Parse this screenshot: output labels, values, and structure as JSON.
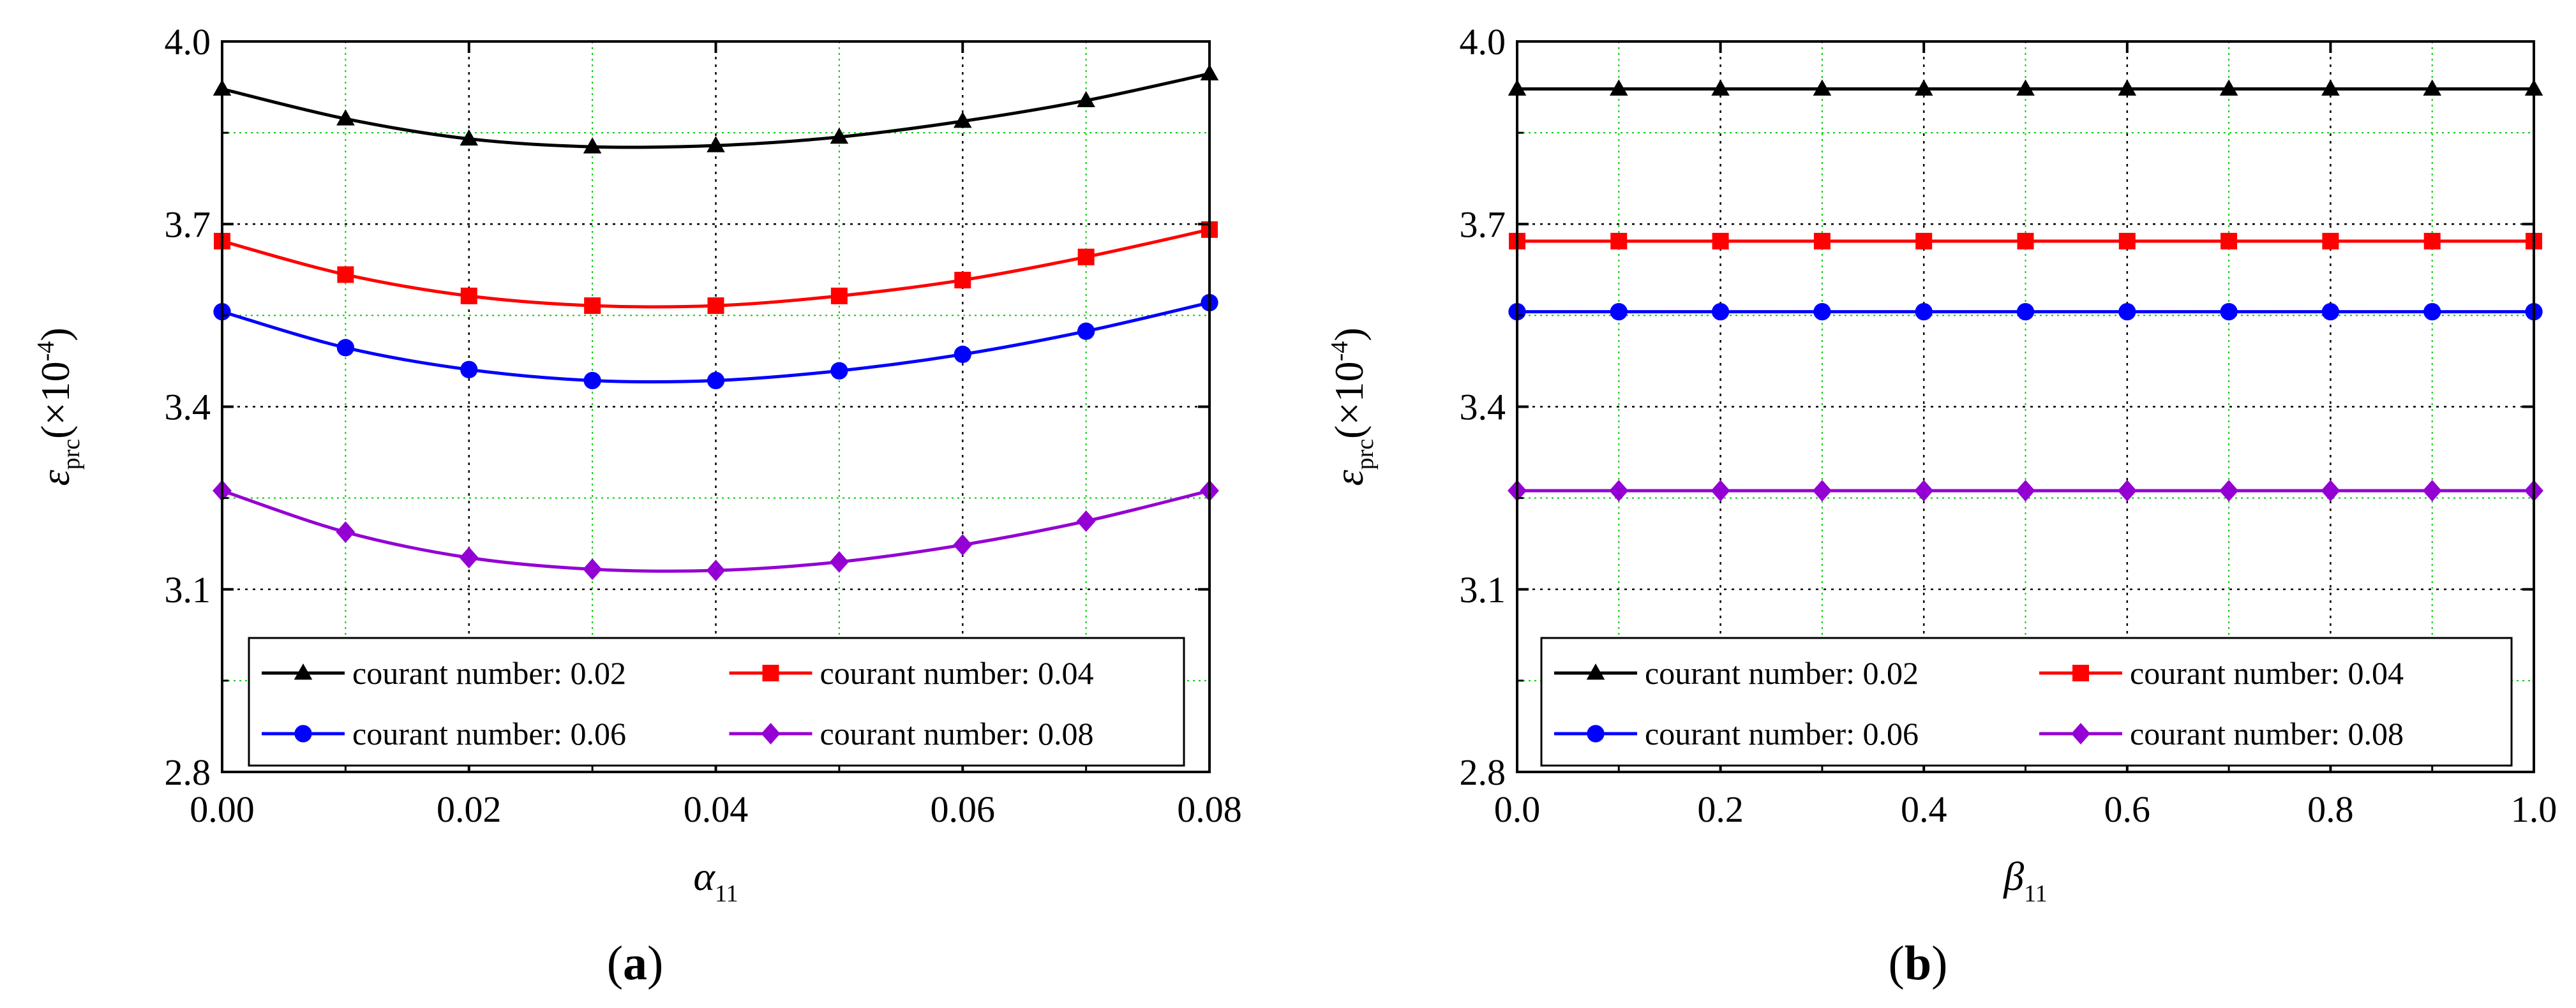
{
  "chart_data": [
    {
      "type": "line",
      "panel_label": "a",
      "xlabel": "α",
      "xlabel_sub": "11",
      "ylabel": "ε",
      "ylabel_sub": "prc",
      "ylabel_unit": "(×10",
      "ylabel_exp": "-4",
      "ylabel_close": ")",
      "xlim": [
        0,
        0.08
      ],
      "ylim": [
        2.8,
        4.0
      ],
      "x_ticks": [
        0,
        0.02,
        0.04,
        0.06,
        0.08
      ],
      "x_tick_labels": [
        "0.00",
        "0.02",
        "0.04",
        "0.06",
        "0.08"
      ],
      "y_ticks": [
        2.8,
        3.1,
        3.4,
        3.7,
        4.0
      ],
      "y_tick_labels": [
        "2.8",
        "3.1",
        "3.4",
        "3.7",
        "4.0"
      ],
      "x": [
        0,
        0.01,
        0.02,
        0.03,
        0.04,
        0.05,
        0.06,
        0.07,
        0.08
      ],
      "grid_major_x": [
        0.02,
        0.04,
        0.06
      ],
      "grid_major_y": [
        3.1,
        3.4,
        3.7
      ],
      "grid_minor_x": [
        0.01,
        0.03,
        0.05,
        0.07
      ],
      "grid_minor_y": [
        2.95,
        3.25,
        3.55,
        3.85
      ],
      "legend_position": "bottom",
      "series": [
        {
          "name": "courant number: 0.02",
          "color": "#000000",
          "marker": "triangle",
          "values": [
            3.922,
            3.873,
            3.84,
            3.827,
            3.829,
            3.843,
            3.869,
            3.903,
            3.947
          ]
        },
        {
          "name": "courant number: 0.04",
          "color": "#ff0000",
          "marker": "square",
          "values": [
            3.672,
            3.617,
            3.582,
            3.566,
            3.566,
            3.582,
            3.608,
            3.646,
            3.691
          ]
        },
        {
          "name": "courant number: 0.06",
          "color": "#0000ff",
          "marker": "circle",
          "values": [
            3.556,
            3.497,
            3.461,
            3.443,
            3.443,
            3.459,
            3.486,
            3.524,
            3.571
          ]
        },
        {
          "name": "courant number: 0.08",
          "color": "#9400d3",
          "marker": "diamond",
          "values": [
            3.262,
            3.194,
            3.152,
            3.133,
            3.131,
            3.145,
            3.173,
            3.212,
            3.262
          ]
        }
      ]
    },
    {
      "type": "line",
      "panel_label": "b",
      "xlabel": "β",
      "xlabel_sub": "11",
      "ylabel": "ε",
      "ylabel_sub": "prc",
      "ylabel_unit": "(×10",
      "ylabel_exp": "-4",
      "ylabel_close": ")",
      "xlim": [
        0,
        1.0
      ],
      "ylim": [
        2.8,
        4.0
      ],
      "x_ticks": [
        0,
        0.2,
        0.4,
        0.6,
        0.8,
        1.0
      ],
      "x_tick_labels": [
        "0.0",
        "0.2",
        "0.4",
        "0.6",
        "0.8",
        "1.0"
      ],
      "y_ticks": [
        2.8,
        3.1,
        3.4,
        3.7,
        4.0
      ],
      "y_tick_labels": [
        "2.8",
        "3.1",
        "3.4",
        "3.7",
        "4.0"
      ],
      "x": [
        0,
        0.1,
        0.2,
        0.3,
        0.4,
        0.5,
        0.6,
        0.7,
        0.8,
        0.9,
        1.0
      ],
      "grid_major_x": [
        0.2,
        0.4,
        0.6,
        0.8
      ],
      "grid_major_y": [
        3.1,
        3.4,
        3.7
      ],
      "grid_minor_x": [
        0.1,
        0.3,
        0.5,
        0.7,
        0.9
      ],
      "grid_minor_y": [
        2.95,
        3.25,
        3.55,
        3.85
      ],
      "legend_position": "bottom",
      "series": [
        {
          "name": "courant number: 0.02",
          "color": "#000000",
          "marker": "triangle",
          "values": [
            3.922,
            3.922,
            3.922,
            3.922,
            3.922,
            3.922,
            3.922,
            3.922,
            3.922,
            3.922,
            3.922
          ]
        },
        {
          "name": "courant number: 0.04",
          "color": "#ff0000",
          "marker": "square",
          "values": [
            3.672,
            3.672,
            3.672,
            3.672,
            3.672,
            3.672,
            3.672,
            3.672,
            3.672,
            3.672,
            3.672
          ]
        },
        {
          "name": "courant number: 0.06",
          "color": "#0000ff",
          "marker": "circle",
          "values": [
            3.556,
            3.556,
            3.556,
            3.556,
            3.556,
            3.556,
            3.556,
            3.556,
            3.556,
            3.556,
            3.556
          ]
        },
        {
          "name": "courant number: 0.08",
          "color": "#9400d3",
          "marker": "diamond",
          "values": [
            3.262,
            3.262,
            3.262,
            3.262,
            3.262,
            3.262,
            3.262,
            3.262,
            3.262,
            3.262,
            3.262
          ]
        }
      ]
    }
  ],
  "styles": {
    "major_grid_color": "#000000",
    "minor_grid_color": "#00cc00",
    "axis_color": "#000000"
  }
}
